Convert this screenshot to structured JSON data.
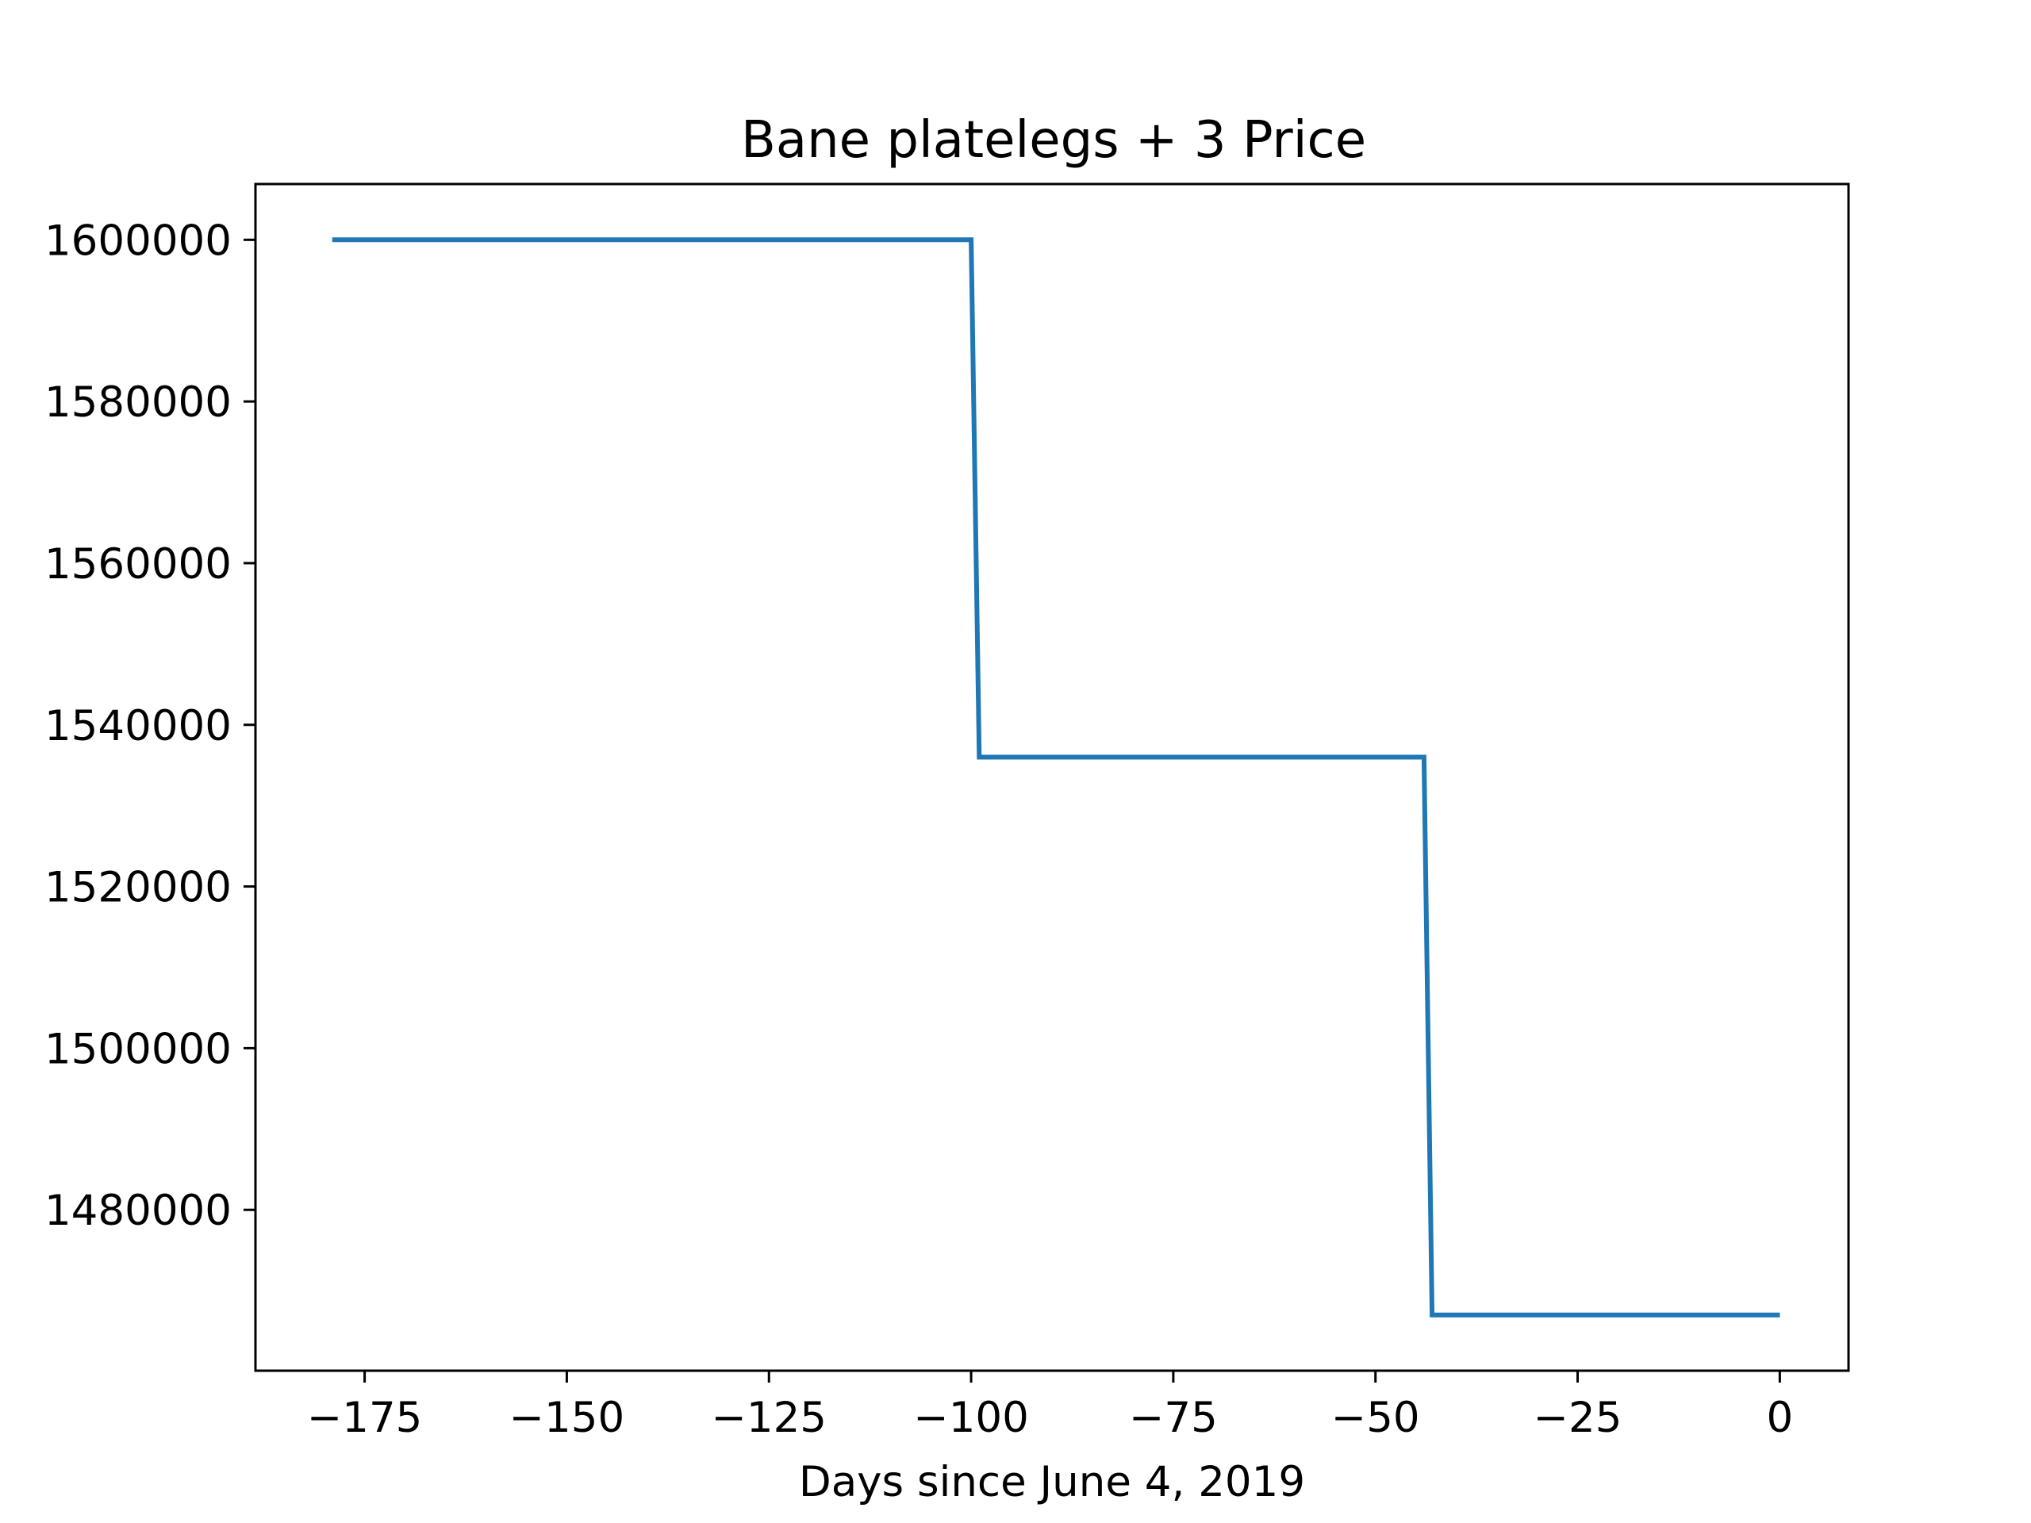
{
  "chart_data": {
    "type": "line",
    "title": "Bane platelegs + 3 Price",
    "xlabel": "Days since June 4, 2019",
    "ylabel": "",
    "xlim": [
      -188.5,
      8.5
    ],
    "ylim": [
      1460100,
      1606900
    ],
    "x_ticks": [
      -175,
      -150,
      -125,
      -100,
      -75,
      -50,
      -25,
      0
    ],
    "x_tick_labels": [
      "−175",
      "−150",
      "−125",
      "−100",
      "−75",
      "−50",
      "−25",
      "0"
    ],
    "y_ticks": [
      1480000,
      1500000,
      1520000,
      1540000,
      1560000,
      1580000,
      1600000
    ],
    "y_tick_labels": [
      "1480000",
      "1500000",
      "1520000",
      "1540000",
      "1560000",
      "1580000",
      "1600000"
    ],
    "grid": false,
    "series": [
      {
        "color": "#1f77b4",
        "x": [
          -179,
          -100,
          -99,
          -44,
          -43,
          0
        ],
        "y": [
          1600000,
          1600000,
          1536000,
          1536000,
          1467000,
          1467000
        ]
      }
    ]
  }
}
